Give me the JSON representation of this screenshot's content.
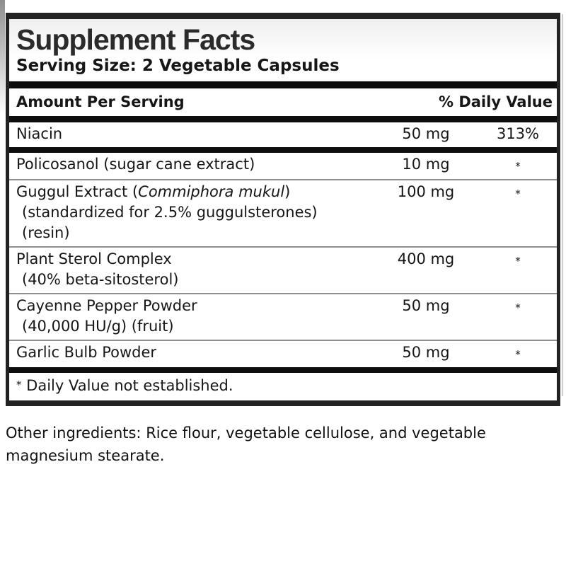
{
  "panel": {
    "title": "Supplement Facts",
    "serving_size": "Serving Size: 2 Vegetable Capsules",
    "header": {
      "amount_label": "Amount Per Serving",
      "daily_value_label": "% Daily Value"
    },
    "rows": [
      {
        "name": "Niacin",
        "amount": "50 mg",
        "dv": "313%"
      },
      {
        "name": "Policosanol (sugar cane extract)",
        "amount": "10 mg",
        "dv": "*"
      },
      {
        "name_prefix": "Guggul Extract (",
        "name_italic": "Commiphora mukul",
        "name_suffix": ")",
        "sub": [
          "(standardized for 2.5% guggulsterones)",
          "(resin)"
        ],
        "amount": "100 mg",
        "dv": "*"
      },
      {
        "name": "Plant Sterol Complex",
        "sub": [
          "(40% beta-sitosterol)"
        ],
        "amount": "400 mg",
        "dv": "*"
      },
      {
        "name": "Cayenne Pepper Powder",
        "sub": [
          "(40,000 HU/g) (fruit)"
        ],
        "amount": "50 mg",
        "dv": "*"
      },
      {
        "name": "Garlic Bulb Powder",
        "amount": "50 mg",
        "dv": "*"
      }
    ],
    "footnote": {
      "symbol": "*",
      "text": " Daily Value not established."
    }
  },
  "other_ingredients": "Other ingredients: Rice flour, vegetable cellulose, and vegetable magnesium stearate.",
  "colors": {
    "bar": "#0e0e0e",
    "border": "#232323",
    "thin_separator": "#8f8f8f",
    "text": "#161616"
  }
}
